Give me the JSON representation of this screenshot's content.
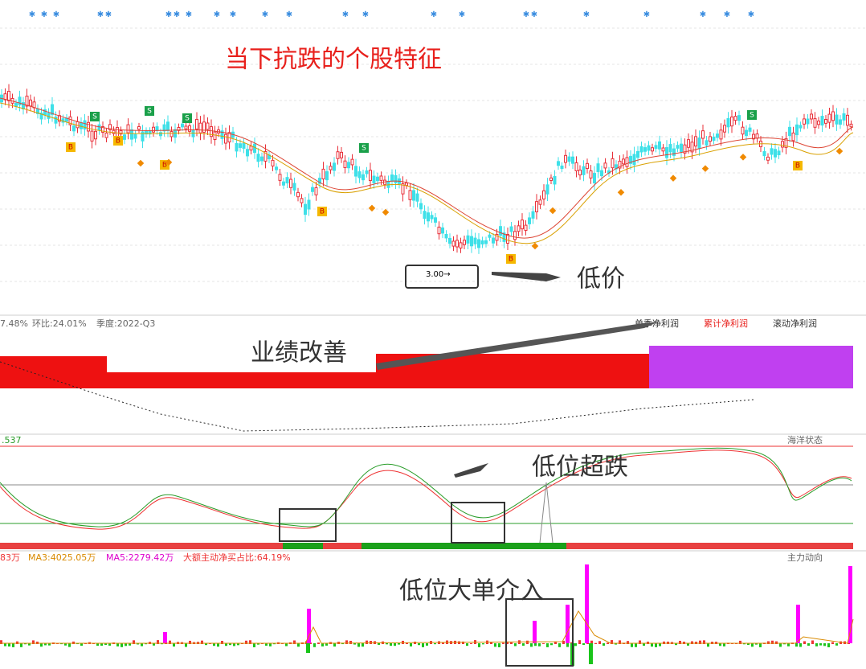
{
  "header": {
    "title": "当下抗跌的个股特征"
  },
  "price_panel": {
    "price_label": "3.00→",
    "annotation": "低价",
    "buy_marker": "B",
    "sell_marker": "S"
  },
  "profit_panel": {
    "stats": [
      "7.48%",
      "环比:24.01%",
      "季度:2022-Q3"
    ],
    "legend": [
      "单季净利润",
      "累计净利润",
      "滚动净利润"
    ],
    "annotation": "业绩改善"
  },
  "ocean_panel": {
    "value": ".537",
    "name": "海洋状态",
    "annotation": "低位超跌"
  },
  "flow_panel": {
    "stats": [
      "83万",
      "MA3:4025.05万",
      "MA5:2279.42万",
      "大额主动净买占比:64.19%"
    ],
    "name": "主力动向",
    "annotation": "低位大单介入"
  }
}
